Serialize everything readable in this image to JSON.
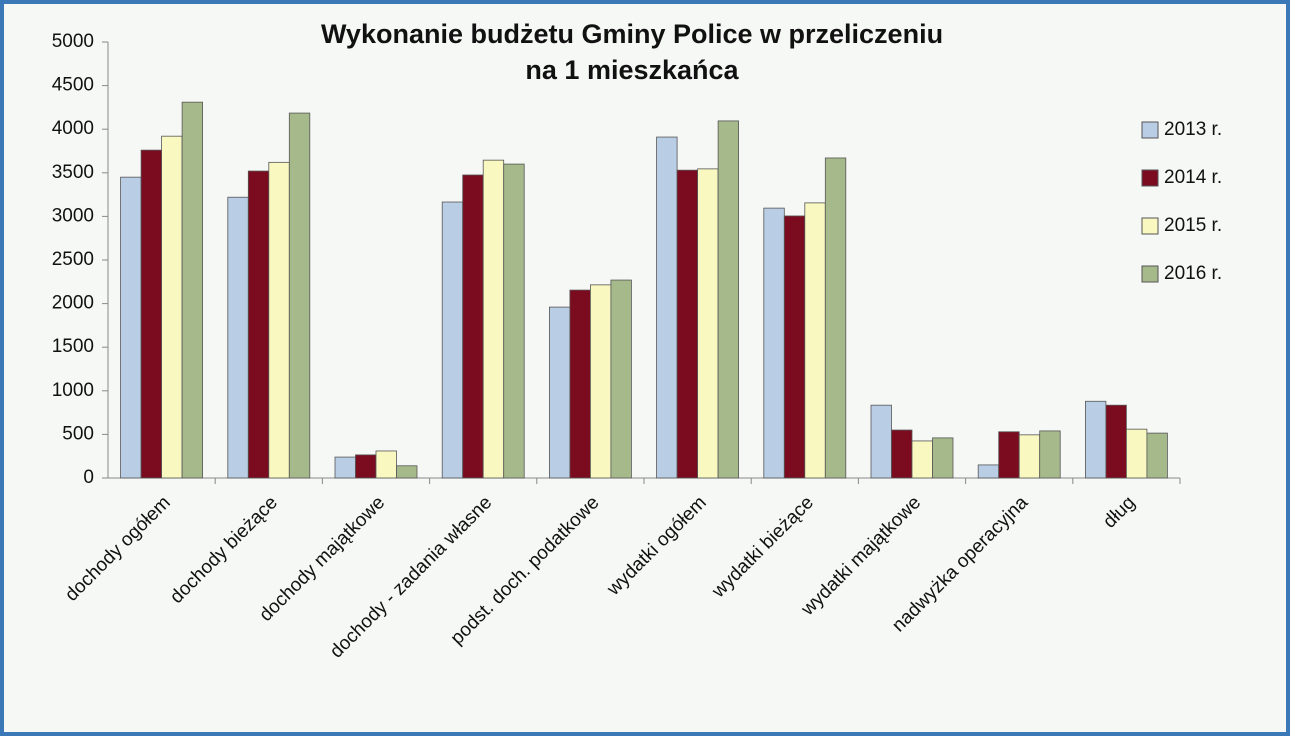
{
  "chart_data": {
    "type": "bar",
    "title": [
      "Wykonanie budżetu Gminy Police w przeliczeniu",
      "na 1 mieszkańca"
    ],
    "categories": [
      "dochody ogółem",
      "dochody bieżące",
      "dochody majątkowe",
      "dochody - zadania własne",
      "podst. doch. podatkowe",
      "wydatki ogółem",
      "wydatki bieżące",
      "wydatki majątkowe",
      "nadwyżka operacyjna",
      "dług"
    ],
    "series": [
      {
        "name": "2013 r.",
        "color": "#b9cde5",
        "values": [
          3450,
          3220,
          240,
          3165,
          1960,
          3910,
          3095,
          835,
          150,
          880
        ]
      },
      {
        "name": "2014 r.",
        "color": "#7b0c1f",
        "values": [
          3760,
          3520,
          265,
          3475,
          2155,
          3530,
          3005,
          550,
          530,
          835
        ]
      },
      {
        "name": "2015 r.",
        "color": "#f8f8c0",
        "values": [
          3920,
          3620,
          310,
          3645,
          2215,
          3545,
          3155,
          425,
          495,
          560
        ]
      },
      {
        "name": "2016 r.",
        "color": "#a6b98a",
        "values": [
          4310,
          4185,
          140,
          3600,
          2270,
          4095,
          3670,
          460,
          540,
          515
        ]
      }
    ],
    "ylim": [
      0,
      5000
    ],
    "yticks": [
      0,
      500,
      1000,
      1500,
      2000,
      2500,
      3000,
      3500,
      4000,
      4500,
      5000
    ],
    "legend": "right"
  }
}
